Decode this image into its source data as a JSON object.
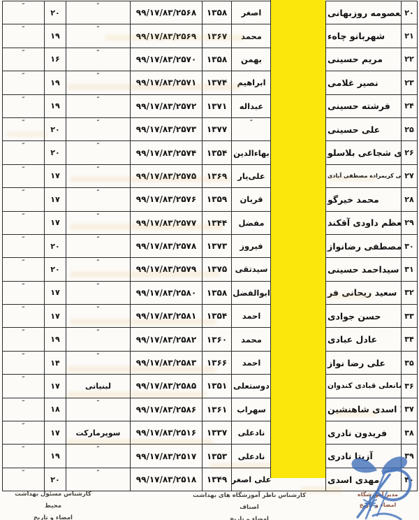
{
  "document": {
    "language": "fa",
    "highlight_color": "#fbe70b",
    "stamp_color": "#3d6db8"
  },
  "table": {
    "rows": [
      {
        "no": "۲۰",
        "name": "معصومه روزبهانی",
        "first": "اصغر",
        "year": "۱۳۵۸",
        "cert": "۹۹/۱۷/۸۳/۲۵۶۸",
        "guild": "″",
        "score": "۲۰",
        "sig": "″"
      },
      {
        "no": "۲۱",
        "name": "شهربانو چاهء",
        "first": "محمد",
        "year": "۱۳۶۷",
        "cert": "۹۹/۱۷/۸۳/۲۵۶۹",
        "guild": "″",
        "score": "۱۹",
        "sig": "″"
      },
      {
        "no": "۲۲",
        "name": "مریم حسینی",
        "first": "بهمن",
        "year": "۱۳۵۸",
        "cert": "۹۹/۱۷/۸۳/۲۵۷۰",
        "guild": "″",
        "score": "۱۶",
        "sig": "″"
      },
      {
        "no": "۲۳",
        "name": "نصیر غلامی",
        "first": "ابراهیم",
        "year": "۱۳۷۴",
        "cert": "۹۹/۱۷/۸۳/۲۵۷۱",
        "guild": "″",
        "score": "۱۹",
        "sig": "″"
      },
      {
        "no": "۲۴",
        "name": "فرشته حسینی",
        "first": "عبداله",
        "year": "۱۳۷۱",
        "cert": "۹۹/۱۷/۸۳/۲۵۷۲",
        "guild": "″",
        "score": "۱۹",
        "sig": "″"
      },
      {
        "no": "۲۵",
        "name": "علی حسینی",
        "first": "″",
        "year": "۱۳۷۷",
        "cert": "۹۹/۱۷/۸۳/۲۵۷۳",
        "guild": "″",
        "score": "۲۰",
        "sig": "″"
      },
      {
        "no": "۲۶",
        "name": "صغری شجاعی بلاسلو",
        "first": "بهاءالدین",
        "year": "۱۳۵۴",
        "cert": "۹۹/۱۷/۸۳/۲۵۷۴",
        "guild": "″",
        "score": "۲۰",
        "sig": "″"
      },
      {
        "no": "۲۷",
        "name": "مجتبی کریمزاده مصطفی آبادی",
        "first": "علی‌یار",
        "year": "۱۳۶۹",
        "cert": "۹۹/۱۷/۸۳/۲۵۷۵",
        "guild": "″",
        "score": "۱۷",
        "sig": "″"
      },
      {
        "no": "۲۸",
        "name": "محمد خیرگو",
        "first": "قربان",
        "year": "۱۳۵۹",
        "cert": "۹۹/۱۷/۸۳/۲۵۷۶",
        "guild": "″",
        "score": "۱۷",
        "sig": "″"
      },
      {
        "no": "۲۹",
        "name": "معظم داودی آقکند",
        "first": "مفضل",
        "year": "۱۳۴۴",
        "cert": "۹۹/۱۷/۸۳/۲۵۷۷",
        "guild": "″",
        "score": "۱۷",
        "sig": "″"
      },
      {
        "no": "۳۰",
        "name": "مصطفی رضانواز",
        "first": "فیروز",
        "year": "۱۳۷۳",
        "cert": "۹۹/۱۷/۸۳/۲۵۷۸",
        "guild": "″",
        "score": "۲۰",
        "sig": "″"
      },
      {
        "no": "۳۱",
        "name": "سیداحمد حسینی",
        "first": "سیدتقی",
        "year": "۱۳۷۵",
        "cert": "۹۹/۱۷/۸۳/۲۵۷۹",
        "guild": "″",
        "score": "۲۰",
        "sig": "″"
      },
      {
        "no": "۳۲",
        "name": "سعید ریحانی فر",
        "first": "ابوالفضل",
        "year": "۱۳۵۸",
        "cert": "۹۹/۱۷/۸۳/۲۵۸۰",
        "guild": "″",
        "score": "۱۷",
        "sig": "″"
      },
      {
        "no": "۳۳",
        "name": "حسن جوادی",
        "first": "احمد",
        "year": "۱۳۵۴",
        "cert": "۹۹/۱۷/۸۳/۲۵۸۱",
        "guild": "″",
        "score": "۱۷",
        "sig": "″"
      },
      {
        "no": "۳۴",
        "name": "عادل عبادی",
        "first": "محمد",
        "year": "۱۳۶۰",
        "cert": "۹۹/۱۷/۸۳/۲۵۸۲",
        "guild": "″",
        "score": "۱۹",
        "sig": "″"
      },
      {
        "no": "۳۵",
        "name": "علی رضا نواز",
        "first": "احمد",
        "year": "۱۳۶۶",
        "cert": "۹۹/۱۷/۸۳/۲۵۸۳",
        "guild": "″",
        "score": "۱۴",
        "sig": "″"
      },
      {
        "no": "۳۶",
        "name": "ایمانعلی قبادی کندوان",
        "first": "دوستعلی",
        "year": "۱۳۵۱",
        "cert": "۹۹/۱۷/۸۳/۲۵۸۵",
        "guild": "لبنیاتی",
        "score": "۱۷",
        "sig": "″"
      },
      {
        "no": "۳۷",
        "name": "لیلا اسدی شاهنشین",
        "first": "سهراب",
        "year": "۱۳۶۱",
        "cert": "۹۹/۱۷/۸۳/۲۵۸۶",
        "guild": "″",
        "score": "۱۸",
        "sig": "″"
      },
      {
        "no": "۳۸",
        "name": "فریدون نادری",
        "first": "نادعلی",
        "year": "۱۳۳۷",
        "cert": "۹۹/۱۷/۸۳/۲۵۱۶",
        "guild": "سوپرمارکت",
        "score": "۱۷",
        "sig": "″"
      },
      {
        "no": "۳۹",
        "name": "آزیتا نادری",
        "first": "نادعلی",
        "year": "۱۳۵۳",
        "cert": "۹۹/۱۷/۸۳/۲۵۱۷",
        "guild": "″",
        "score": "۱۹",
        "sig": "″"
      },
      {
        "no": "۴۰",
        "name": "مهدی اسدی",
        "first": "علی اصغر",
        "year": "۱۳۴۹",
        "cert": "۹۹/۱۷/۸۳/۲۵۱۸",
        "guild": "″",
        "score": "۲۰",
        "sig": "″"
      }
    ]
  },
  "footer": {
    "left": {
      "line1": "کارشناس مسئول بهداشت محیط",
      "line2": "امضاء و تاریخ"
    },
    "center": {
      "line1": "کارشناس ناظر آموزشگاه های بهداشت اصناف",
      "line2": "امضاء و تاریخ"
    },
    "right": {
      "line1": "مدیر آموزشگاه",
      "line2": "امضاء و تاریخ"
    }
  }
}
